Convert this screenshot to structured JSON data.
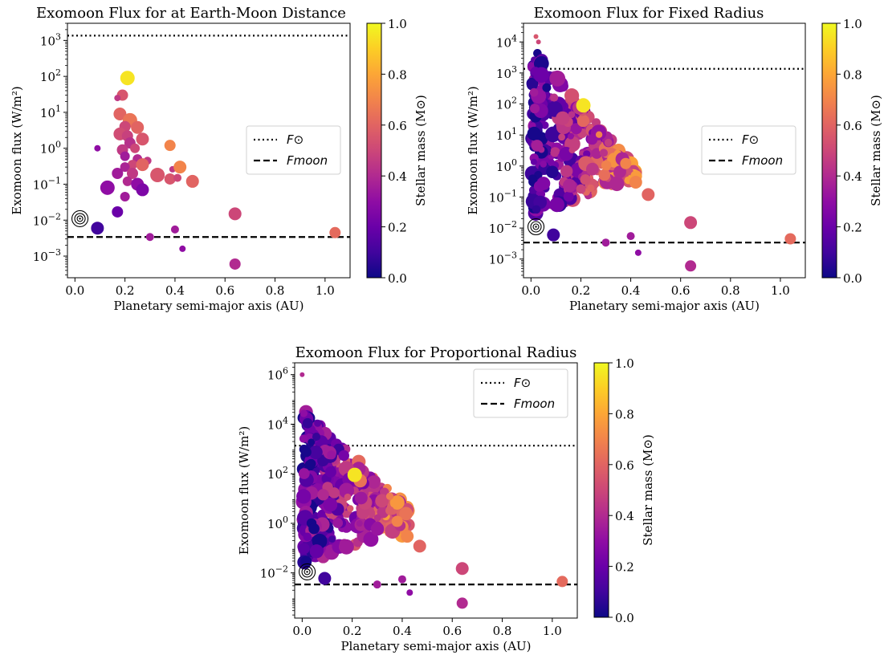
{
  "figure": {
    "xlabel": "Planetary semi-major axis (AU)",
    "ylabel": "Exomoon flux (W/m²)",
    "colorbar_label": "Stellar mass (M⊙)"
  },
  "colors": {
    "colormap": "plasma",
    "solar_line": "#000000",
    "moon_line": "#000000"
  },
  "legend": {
    "solar_label": "F⊙",
    "moon_label": "Fmoon"
  },
  "chart_data": [
    {
      "type": "scatter",
      "title": "Exomoon Flux for at Earth-Moon Distance",
      "xlabel": "Planetary semi-major axis (AU)",
      "ylabel": "Exomoon flux (W/m²)",
      "xlim": [
        -0.03,
        1.1
      ],
      "ylim": [
        0.00025,
        3000
      ],
      "yscale": "log",
      "xticks": [
        "0.0",
        "0.2",
        "0.4",
        "0.6",
        "0.8",
        "1.0"
      ],
      "yticks": [
        "10^-3",
        "10^-2",
        "10^-1",
        "10^0",
        "10^1",
        "10^2",
        "10^3"
      ],
      "legend_position": "center-right",
      "lines": [
        {
          "name": "F⊙",
          "style": "dotted",
          "y": 1361
        },
        {
          "name": "Fmoon",
          "style": "dashed",
          "y": 0.0034
        }
      ],
      "colorbar": {
        "label": "Stellar mass (M⊙)",
        "range": [
          0.0,
          1.0
        ],
        "ticks": [
          "0.0",
          "0.2",
          "0.4",
          "0.6",
          "0.8",
          "1.0"
        ]
      },
      "earth_marker": {
        "x": 0.02,
        "y": 0.011
      },
      "points": [
        {
          "x": 0.21,
          "y": 90,
          "mass": 0.95,
          "size": 9
        },
        {
          "x": 0.19,
          "y": 30,
          "mass": 0.55,
          "size": 7
        },
        {
          "x": 0.17,
          "y": 25,
          "mass": 0.45,
          "size": 4
        },
        {
          "x": 0.18,
          "y": 9,
          "mass": 0.6,
          "size": 8
        },
        {
          "x": 0.22,
          "y": 6,
          "mass": 0.65,
          "size": 9
        },
        {
          "x": 0.2,
          "y": 4,
          "mass": 0.5,
          "size": 7
        },
        {
          "x": 0.25,
          "y": 3.8,
          "mass": 0.6,
          "size": 8
        },
        {
          "x": 0.18,
          "y": 2.5,
          "mass": 0.52,
          "size": 8
        },
        {
          "x": 0.21,
          "y": 2.2,
          "mass": 0.48,
          "size": 7
        },
        {
          "x": 0.27,
          "y": 1.8,
          "mass": 0.55,
          "size": 8
        },
        {
          "x": 0.22,
          "y": 1.4,
          "mass": 0.42,
          "size": 7
        },
        {
          "x": 0.24,
          "y": 1.0,
          "mass": 0.5,
          "size": 6
        },
        {
          "x": 0.19,
          "y": 0.9,
          "mass": 0.45,
          "size": 7
        },
        {
          "x": 0.09,
          "y": 1.0,
          "mass": 0.3,
          "size": 4
        },
        {
          "x": 0.38,
          "y": 1.2,
          "mass": 0.7,
          "size": 7
        },
        {
          "x": 0.2,
          "y": 0.6,
          "mass": 0.35,
          "size": 6
        },
        {
          "x": 0.25,
          "y": 0.5,
          "mass": 0.4,
          "size": 6
        },
        {
          "x": 0.29,
          "y": 0.45,
          "mass": 0.45,
          "size": 5
        },
        {
          "x": 0.23,
          "y": 0.35,
          "mass": 0.5,
          "size": 6
        },
        {
          "x": 0.27,
          "y": 0.35,
          "mass": 0.6,
          "size": 8
        },
        {
          "x": 0.2,
          "y": 0.3,
          "mass": 0.38,
          "size": 6
        },
        {
          "x": 0.17,
          "y": 0.2,
          "mass": 0.35,
          "size": 7
        },
        {
          "x": 0.23,
          "y": 0.2,
          "mass": 0.45,
          "size": 7
        },
        {
          "x": 0.33,
          "y": 0.18,
          "mass": 0.55,
          "size": 9
        },
        {
          "x": 0.39,
          "y": 0.26,
          "mass": 0.45,
          "size": 4
        },
        {
          "x": 0.42,
          "y": 0.3,
          "mass": 0.7,
          "size": 8
        },
        {
          "x": 0.21,
          "y": 0.12,
          "mass": 0.4,
          "size": 6
        },
        {
          "x": 0.25,
          "y": 0.1,
          "mass": 0.3,
          "size": 8
        },
        {
          "x": 0.38,
          "y": 0.14,
          "mass": 0.55,
          "size": 7
        },
        {
          "x": 0.41,
          "y": 0.15,
          "mass": 0.5,
          "size": 5
        },
        {
          "x": 0.47,
          "y": 0.12,
          "mass": 0.6,
          "size": 8
        },
        {
          "x": 0.13,
          "y": 0.08,
          "mass": 0.3,
          "size": 9
        },
        {
          "x": 0.27,
          "y": 0.07,
          "mass": 0.25,
          "size": 8
        },
        {
          "x": 0.2,
          "y": 0.045,
          "mass": 0.35,
          "size": 6
        },
        {
          "x": 0.17,
          "y": 0.017,
          "mass": 0.2,
          "size": 7
        },
        {
          "x": 0.09,
          "y": 0.006,
          "mass": 0.1,
          "size": 8
        },
        {
          "x": 0.3,
          "y": 0.0034,
          "mass": 0.35,
          "size": 5
        },
        {
          "x": 0.4,
          "y": 0.0055,
          "mass": 0.35,
          "size": 5
        },
        {
          "x": 0.43,
          "y": 0.0016,
          "mass": 0.3,
          "size": 4
        },
        {
          "x": 0.64,
          "y": 0.015,
          "mass": 0.5,
          "size": 8
        },
        {
          "x": 0.64,
          "y": 0.0006,
          "mass": 0.4,
          "size": 7
        },
        {
          "x": 1.04,
          "y": 0.0045,
          "mass": 0.62,
          "size": 7
        }
      ]
    },
    {
      "type": "scatter",
      "title": "Exomoon Flux for Fixed Radius",
      "xlabel": "Planetary semi-major axis (AU)",
      "ylabel": "Exomoon flux (W/m²)",
      "xlim": [
        -0.03,
        1.1
      ],
      "ylim": [
        0.00025,
        40000
      ],
      "yscale": "log",
      "xticks": [
        "0.0",
        "0.2",
        "0.4",
        "0.6",
        "0.8",
        "1.0"
      ],
      "yticks": [
        "10^-3",
        "10^-2",
        "10^-1",
        "10^0",
        "10^1",
        "10^2",
        "10^3",
        "10^4"
      ],
      "legend_position": "center-right",
      "lines": [
        {
          "name": "F⊙",
          "style": "dotted",
          "y": 1361
        },
        {
          "name": "Fmoon",
          "style": "dashed",
          "y": 0.0034
        }
      ],
      "colorbar": {
        "label": "Stellar mass (M⊙)",
        "range": [
          0.0,
          1.0
        ],
        "ticks": [
          "0.0",
          "0.2",
          "0.4",
          "0.6",
          "0.8",
          "1.0"
        ]
      },
      "earth_marker": {
        "x": 0.02,
        "y": 0.011
      },
      "cloud": {
        "count": 360,
        "seed": 7
      },
      "points": [
        {
          "x": 0.21,
          "y": 90,
          "mass": 0.95,
          "size": 9
        },
        {
          "x": 0.38,
          "y": 1.2,
          "mass": 0.7,
          "size": 7
        },
        {
          "x": 0.42,
          "y": 0.3,
          "mass": 0.7,
          "size": 8
        },
        {
          "x": 0.47,
          "y": 0.12,
          "mass": 0.6,
          "size": 8
        },
        {
          "x": 0.09,
          "y": 0.006,
          "mass": 0.1,
          "size": 8
        },
        {
          "x": 0.3,
          "y": 0.0034,
          "mass": 0.35,
          "size": 5
        },
        {
          "x": 0.4,
          "y": 0.0055,
          "mass": 0.35,
          "size": 5
        },
        {
          "x": 0.43,
          "y": 0.0016,
          "mass": 0.3,
          "size": 4
        },
        {
          "x": 0.64,
          "y": 0.015,
          "mass": 0.5,
          "size": 8
        },
        {
          "x": 0.64,
          "y": 0.0006,
          "mass": 0.4,
          "size": 7
        },
        {
          "x": 1.04,
          "y": 0.0045,
          "mass": 0.62,
          "size": 7
        },
        {
          "x": 0.02,
          "y": 15000,
          "mass": 0.55,
          "size": 3
        },
        {
          "x": 0.03,
          "y": 10000,
          "mass": 0.5,
          "size": 3
        }
      ]
    },
    {
      "type": "scatter",
      "title": "Exomoon Flux for Proportional Radius",
      "xlabel": "Planetary semi-major axis (AU)",
      "ylabel": "Exomoon flux (W/m²)",
      "xlim": [
        -0.03,
        1.1
      ],
      "ylim": [
        0.00015,
        3000000
      ],
      "yscale": "log",
      "xticks": [
        "0.0",
        "0.2",
        "0.4",
        "0.6",
        "0.8",
        "1.0"
      ],
      "yticks": [
        "10^-2",
        "10^0",
        "10^2",
        "10^4",
        "10^6"
      ],
      "legend_position": "top-right",
      "lines": [
        {
          "name": "F⊙",
          "style": "dotted",
          "y": 1361
        },
        {
          "name": "Fmoon",
          "style": "dashed",
          "y": 0.0034
        }
      ],
      "colorbar": {
        "label": "Stellar mass (M⊙)",
        "range": [
          0.0,
          1.0
        ],
        "ticks": [
          "0.0",
          "0.2",
          "0.4",
          "0.6",
          "0.8",
          "1.0"
        ]
      },
      "earth_marker": {
        "x": 0.02,
        "y": 0.011
      },
      "cloud": {
        "count": 360,
        "seed": 11,
        "upper_boost": 2.2
      },
      "points": [
        {
          "x": 0.0,
          "y": 1000000,
          "mass": 0.4,
          "size": 3
        },
        {
          "x": 0.21,
          "y": 90,
          "mass": 0.95,
          "size": 9
        },
        {
          "x": 0.38,
          "y": 1.2,
          "mass": 0.7,
          "size": 7
        },
        {
          "x": 0.42,
          "y": 0.3,
          "mass": 0.7,
          "size": 8
        },
        {
          "x": 0.47,
          "y": 0.12,
          "mass": 0.6,
          "size": 8
        },
        {
          "x": 0.09,
          "y": 0.006,
          "mass": 0.1,
          "size": 8
        },
        {
          "x": 0.3,
          "y": 0.0034,
          "mass": 0.35,
          "size": 5
        },
        {
          "x": 0.4,
          "y": 0.0055,
          "mass": 0.35,
          "size": 5
        },
        {
          "x": 0.43,
          "y": 0.0016,
          "mass": 0.3,
          "size": 4
        },
        {
          "x": 0.64,
          "y": 0.015,
          "mass": 0.5,
          "size": 8
        },
        {
          "x": 0.64,
          "y": 0.0006,
          "mass": 0.4,
          "size": 7
        },
        {
          "x": 1.04,
          "y": 0.0045,
          "mass": 0.62,
          "size": 7
        }
      ]
    }
  ]
}
